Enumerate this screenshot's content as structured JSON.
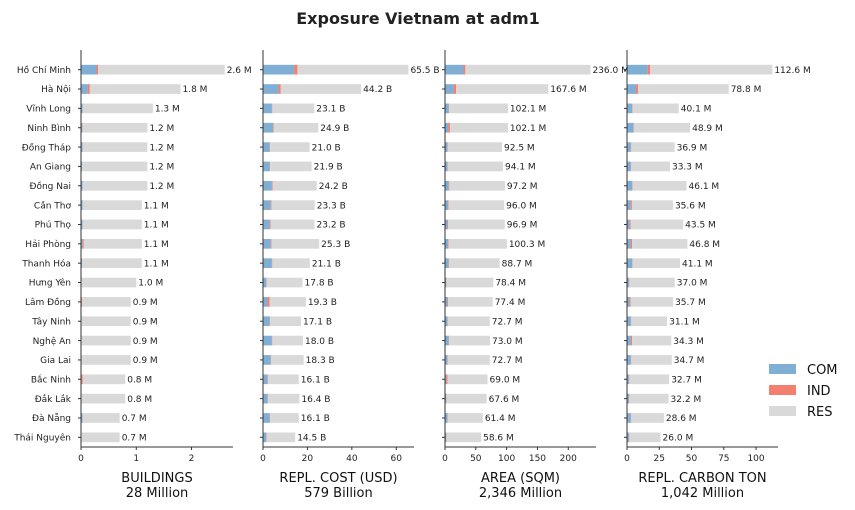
{
  "chart_data": {
    "type": "bar",
    "title": "Exposure Vietnam at adm1",
    "categories": [
      "Hồ Chí Minh",
      "Hà Nội",
      "Vĩnh Long",
      "Ninh Bình",
      "Đồng Tháp",
      "An Giang",
      "Đồng Nai",
      "Cần Thơ",
      "Phú Thọ",
      "Hải Phòng",
      "Thanh Hóa",
      "Hưng Yên",
      "Lâm Đồng",
      "Tây Ninh",
      "Nghệ An",
      "Gia Lai",
      "Bắc Ninh",
      "Đắk Lắk",
      "Đà Nẵng",
      "Thái Nguyên"
    ],
    "legend": {
      "position": "right",
      "entries": [
        {
          "name": "COM",
          "color": "#7fafd4"
        },
        {
          "name": "IND",
          "color": "#f47f6e"
        },
        {
          "name": "RES",
          "color": "#d9d9d9"
        }
      ]
    },
    "panels": [
      {
        "xlabel": "BUILDINGS",
        "total": "28 Million",
        "xlim": [
          0,
          2.75
        ],
        "ticks": [
          0,
          1,
          2
        ],
        "tick_labels": [
          "0",
          "1",
          "2"
        ],
        "totals": [
          2.6,
          1.8,
          1.3,
          1.2,
          1.2,
          1.2,
          1.2,
          1.1,
          1.1,
          1.1,
          1.1,
          1.0,
          0.9,
          0.9,
          0.9,
          0.9,
          0.8,
          0.8,
          0.7,
          0.7
        ],
        "labels": [
          "2.6 M",
          "1.8 M",
          "1.3 M",
          "1.2 M",
          "1.2 M",
          "1.2 M",
          "1.2 M",
          "1.1 M",
          "1.1 M",
          "1.1 M",
          "1.1 M",
          "1.0 M",
          "0.9 M",
          "0.9 M",
          "0.9 M",
          "0.9 M",
          "0.8 M",
          "0.8 M",
          "0.7 M",
          "0.7 M"
        ],
        "com": [
          0.28,
          0.12,
          0.03,
          0.02,
          0.03,
          0.02,
          0.03,
          0.03,
          0.03,
          0.03,
          0.02,
          0.01,
          0.01,
          0.01,
          0.01,
          0.01,
          0.01,
          0.01,
          0.03,
          0.01
        ],
        "ind": [
          0.03,
          0.04,
          0.0,
          0.01,
          0.0,
          0.0,
          0.0,
          0.0,
          0.0,
          0.02,
          0.0,
          0.0,
          0.01,
          0.0,
          0.0,
          0.0,
          0.02,
          0.0,
          0.0,
          0.0
        ]
      },
      {
        "xlabel": "REPL. COST (USD)",
        "total": "579 Billion",
        "xlim": [
          0,
          68
        ],
        "ticks": [
          0,
          20,
          40,
          60
        ],
        "tick_labels": [
          "0",
          "20",
          "40",
          "60"
        ],
        "totals": [
          65.5,
          44.2,
          23.1,
          24.9,
          21.0,
          21.9,
          24.2,
          23.3,
          23.2,
          25.3,
          21.1,
          17.8,
          19.3,
          17.1,
          18.0,
          18.3,
          16.1,
          16.4,
          16.1,
          14.5
        ],
        "labels": [
          "65.5 B",
          "44.2 B",
          "23.1 B",
          "24.9 B",
          "21.0 B",
          "21.9 B",
          "24.2 B",
          "23.3 B",
          "23.2 B",
          "25.3 B",
          "21.1 B",
          "17.8 B",
          "19.3 B",
          "17.1 B",
          "18.0 B",
          "18.3 B",
          "16.1 B",
          "16.4 B",
          "16.1 B",
          "14.5 B"
        ],
        "com": [
          14.0,
          7.0,
          4.0,
          4.5,
          3.0,
          3.0,
          4.0,
          3.5,
          3.0,
          3.5,
          4.0,
          1.5,
          2.0,
          3.0,
          4.0,
          3.5,
          2.0,
          2.0,
          3.0,
          1.5
        ],
        "ind": [
          1.5,
          1.0,
          0.2,
          0.3,
          0.2,
          0.2,
          0.3,
          0.3,
          0.4,
          0.3,
          0.2,
          0.2,
          1.0,
          0.2,
          0.2,
          0.2,
          0.2,
          0.2,
          0.2,
          0.2
        ]
      },
      {
        "xlabel": "AREA (SQM)",
        "total": "2,346 Million",
        "xlim": [
          0,
          245
        ],
        "ticks": [
          0,
          50,
          100,
          150,
          200
        ],
        "tick_labels": [
          "0",
          "50",
          "100",
          "150",
          "200"
        ],
        "totals": [
          236.0,
          167.6,
          102.1,
          102.1,
          92.5,
          94.1,
          97.2,
          96.0,
          96.9,
          100.3,
          88.7,
          78.4,
          77.4,
          72.7,
          73.0,
          72.7,
          69.0,
          67.6,
          61.4,
          58.6
        ],
        "labels": [
          "236.0 M",
          "167.6 M",
          "102.1 M",
          "102.1 M",
          "92.5 M",
          "94.1 M",
          "97.2 M",
          "96.0 M",
          "96.9 M",
          "100.3 M",
          "88.7 M",
          "78.4 M",
          "77.4 M",
          "72.7 M",
          "73.0 M",
          "72.7 M",
          "69.0 M",
          "67.6 M",
          "61.4 M",
          "58.6 M"
        ],
        "com": [
          30.0,
          14.0,
          6.0,
          5.0,
          4.0,
          4.0,
          6.0,
          5.0,
          4.0,
          5.0,
          6.0,
          2.0,
          4.0,
          4.0,
          6.0,
          4.0,
          2.0,
          2.0,
          4.0,
          2.0
        ],
        "ind": [
          3.0,
          4.0,
          0.5,
          3.0,
          0.5,
          0.5,
          1.0,
          1.0,
          1.0,
          1.0,
          0.5,
          0.5,
          1.0,
          0.5,
          0.5,
          0.5,
          2.0,
          0.5,
          0.5,
          0.5
        ]
      },
      {
        "xlabel": "REPL. CARBON TON",
        "total": "1,042 Million",
        "xlim": [
          0,
          117
        ],
        "ticks": [
          0,
          25,
          50,
          75,
          100
        ],
        "tick_labels": [
          "0",
          "25",
          "50",
          "75",
          "100"
        ],
        "totals": [
          112.6,
          78.8,
          40.1,
          48.9,
          36.9,
          33.3,
          46.1,
          35.6,
          43.5,
          46.8,
          41.1,
          37.0,
          35.7,
          31.1,
          34.3,
          34.7,
          32.7,
          32.2,
          28.6,
          26.0
        ],
        "labels": [
          "112.6 M",
          "78.8 M",
          "40.1 M",
          "48.9 M",
          "36.9 M",
          "33.3 M",
          "46.1 M",
          "35.6 M",
          "43.5 M",
          "46.8 M",
          "41.1 M",
          "37.0 M",
          "35.7 M",
          "31.1 M",
          "34.3 M",
          "34.7 M",
          "32.7 M",
          "32.2 M",
          "28.6 M",
          "26.0 M"
        ],
        "com": [
          16.0,
          7.0,
          4.0,
          5.0,
          3.0,
          3.0,
          4.0,
          3.0,
          2.0,
          3.0,
          4.0,
          1.5,
          2.0,
          3.0,
          3.0,
          3.0,
          1.5,
          1.5,
          3.0,
          1.5
        ],
        "ind": [
          2.0,
          1.5,
          0.3,
          0.3,
          0.3,
          0.3,
          0.3,
          0.8,
          0.8,
          1.0,
          0.3,
          0.3,
          0.8,
          0.3,
          1.0,
          0.3,
          0.3,
          0.3,
          0.3,
          0.3
        ]
      }
    ]
  }
}
